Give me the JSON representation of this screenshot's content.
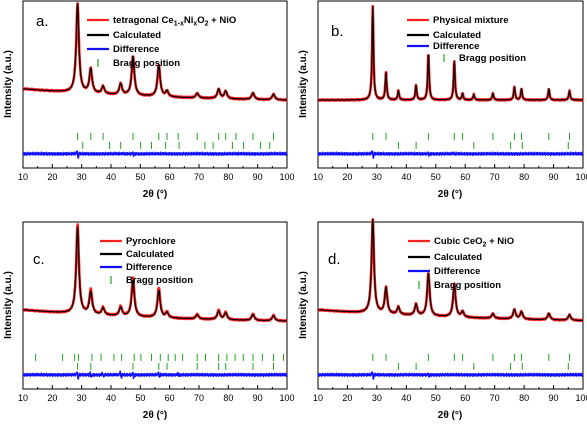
{
  "chart_data": [
    {
      "type": "line",
      "panel_label": "a.",
      "xlabel": "2θ (°)",
      "ylabel": "Intensity (a.u.)",
      "xlim": [
        10,
        100
      ],
      "xticks": [
        10,
        20,
        30,
        40,
        50,
        60,
        70,
        80,
        90,
        100
      ],
      "legend_position": "top-right",
      "legend": [
        {
          "label": "tetragonal Ce1-xNixO2 + NiO",
          "style": "line",
          "color": "#ff2020"
        },
        {
          "label": "Calculated",
          "style": "line",
          "color": "#000000"
        },
        {
          "label": "Difference",
          "style": "line",
          "color": "#1010ff"
        },
        {
          "label": "Bragg position",
          "style": "tick",
          "color": "#22a022"
        }
      ],
      "baseline": 0.15,
      "decay": 0.18,
      "peaks": [
        [
          28.6,
          0.95
        ],
        [
          33.1,
          0.26
        ],
        [
          37.3,
          0.08
        ],
        [
          43.3,
          0.12
        ],
        [
          47.5,
          0.42
        ],
        [
          56.3,
          0.34
        ],
        [
          59.1,
          0.06
        ],
        [
          69.4,
          0.05
        ],
        [
          76.7,
          0.1
        ],
        [
          79.1,
          0.08
        ],
        [
          88.4,
          0.07
        ],
        [
          95.4,
          0.06
        ]
      ],
      "peak_width": 0.55,
      "fit_mismatch": 0.0,
      "bragg_rows": [
        [
          28.6,
          33.1,
          37.3,
          47.5,
          56.3,
          59.1,
          62.9,
          69.4,
          76.7,
          79.1,
          82.6,
          88.4,
          95.4
        ],
        [
          30.4,
          39.5,
          43.3,
          50.1,
          53.8,
          58.6,
          63.2,
          72.0,
          74.8,
          81.4,
          85.2,
          91.0,
          94.1
        ]
      ],
      "difference_features": [
        [
          28.6,
          1.0
        ],
        [
          47.5,
          0.35
        ]
      ]
    },
    {
      "type": "line",
      "panel_label": "b.",
      "xlabel": "2θ (°)",
      "ylabel": "Intensity (a.u.)",
      "xlim": [
        10,
        100
      ],
      "xticks": [
        10,
        20,
        30,
        40,
        50,
        60,
        70,
        80,
        90,
        100
      ],
      "legend_position": "top-right",
      "legend": [
        {
          "label": "Physical mixture",
          "style": "line",
          "color": "#ff2020"
        },
        {
          "label": "Calculated",
          "style": "line",
          "color": "#000000"
        },
        {
          "label": "Difference",
          "style": "line",
          "color": "#1010ff"
        },
        {
          "label": "Bragg position",
          "style": "tick",
          "color": "#22a022"
        }
      ],
      "baseline": 0.03,
      "decay": 0.0,
      "peaks": [
        [
          28.6,
          1.0
        ],
        [
          33.1,
          0.3
        ],
        [
          37.3,
          0.1
        ],
        [
          43.3,
          0.16
        ],
        [
          47.5,
          0.5
        ],
        [
          56.3,
          0.42
        ],
        [
          59.1,
          0.07
        ],
        [
          62.9,
          0.06
        ],
        [
          69.4,
          0.07
        ],
        [
          76.7,
          0.14
        ],
        [
          79.1,
          0.12
        ],
        [
          88.4,
          0.12
        ],
        [
          95.4,
          0.1
        ]
      ],
      "peak_width": 0.28,
      "fit_mismatch": 0.0,
      "bragg_rows": [
        [
          28.6,
          33.1,
          47.5,
          56.3,
          59.1,
          69.4,
          76.7,
          79.1,
          88.4,
          95.4
        ],
        [
          37.3,
          43.3,
          62.9,
          75.4,
          79.4,
          95.0
        ]
      ],
      "difference_features": [
        [
          28.6,
          1.0
        ],
        [
          47.5,
          0.3
        ],
        [
          56.3,
          0.2
        ]
      ]
    },
    {
      "type": "line",
      "panel_label": "c.",
      "xlabel": "2θ (°)",
      "ylabel": "Intensity (a.u.)",
      "xlim": [
        10,
        100
      ],
      "xticks": [
        10,
        20,
        30,
        40,
        50,
        60,
        70,
        80,
        90,
        100
      ],
      "legend_position": "top-right",
      "legend": [
        {
          "label": "Pyrochlore",
          "style": "line",
          "color": "#ff2020"
        },
        {
          "label": "Calculated",
          "style": "line",
          "color": "#000000"
        },
        {
          "label": "Difference",
          "style": "line",
          "color": "#1010ff"
        },
        {
          "label": "Bragg position",
          "style": "tick",
          "color": "#22a022"
        }
      ],
      "baseline": 0.15,
      "decay": 0.18,
      "peaks": [
        [
          28.6,
          0.95
        ],
        [
          33.1,
          0.26
        ],
        [
          37.3,
          0.08
        ],
        [
          43.3,
          0.1
        ],
        [
          47.5,
          0.42
        ],
        [
          56.3,
          0.32
        ],
        [
          59.1,
          0.06
        ],
        [
          69.4,
          0.05
        ],
        [
          76.7,
          0.1
        ],
        [
          79.1,
          0.08
        ],
        [
          88.4,
          0.07
        ],
        [
          95.4,
          0.06
        ]
      ],
      "peak_width": 0.55,
      "fit_mismatch": 0.18,
      "bragg_rows": [
        [
          14.3,
          23.5,
          27.6,
          28.9,
          33.5,
          36.6,
          41.0,
          43.6,
          47.9,
          50.2,
          53.8,
          56.8,
          59.5,
          61.9,
          64.4,
          69.4,
          72.2,
          76.7,
          79.5,
          82.3,
          85.1,
          88.4,
          91.6,
          95.4,
          98.8
        ],
        [
          28.6,
          33.1,
          47.5,
          56.3,
          59.1,
          69.4,
          76.7,
          79.1,
          88.4,
          95.4
        ]
      ],
      "difference_features": [
        [
          28.6,
          1.0
        ],
        [
          33.1,
          0.6
        ],
        [
          37.3,
          0.5
        ],
        [
          43.3,
          0.9
        ],
        [
          47.5,
          0.7
        ],
        [
          56.3,
          0.6
        ],
        [
          62.9,
          0.4
        ]
      ]
    },
    {
      "type": "line",
      "panel_label": "d.",
      "xlabel": "2θ (°)",
      "ylabel": "Intensity (a.u.)",
      "xlim": [
        10,
        100
      ],
      "xticks": [
        10,
        20,
        30,
        40,
        50,
        60,
        70,
        80,
        90,
        100
      ],
      "legend_position": "top-right",
      "legend": [
        {
          "label": "Cubic CeO2 + NiO",
          "style": "line",
          "color": "#ff2020"
        },
        {
          "label": "Calculated",
          "style": "line",
          "color": "#000000"
        },
        {
          "label": "Difference",
          "style": "line",
          "color": "#1010ff"
        },
        {
          "label": "Bragg position",
          "style": "tick",
          "color": "#22a022"
        }
      ],
      "baseline": 0.15,
      "decay": 0.16,
      "peaks": [
        [
          28.6,
          1.0
        ],
        [
          33.1,
          0.28
        ],
        [
          37.3,
          0.08
        ],
        [
          43.3,
          0.12
        ],
        [
          47.5,
          0.46
        ],
        [
          56.3,
          0.36
        ],
        [
          59.1,
          0.06
        ],
        [
          69.4,
          0.05
        ],
        [
          76.7,
          0.1
        ],
        [
          79.1,
          0.08
        ],
        [
          88.4,
          0.07
        ],
        [
          95.4,
          0.06
        ]
      ],
      "peak_width": 0.5,
      "fit_mismatch": 0.0,
      "bragg_rows": [
        [
          28.6,
          33.1,
          47.5,
          56.3,
          59.1,
          69.4,
          76.7,
          79.1,
          88.4,
          95.4
        ],
        [
          37.3,
          43.3,
          62.9,
          75.4,
          79.4,
          95.0
        ]
      ],
      "difference_features": [
        [
          28.6,
          1.0
        ],
        [
          47.5,
          0.3
        ]
      ]
    }
  ]
}
